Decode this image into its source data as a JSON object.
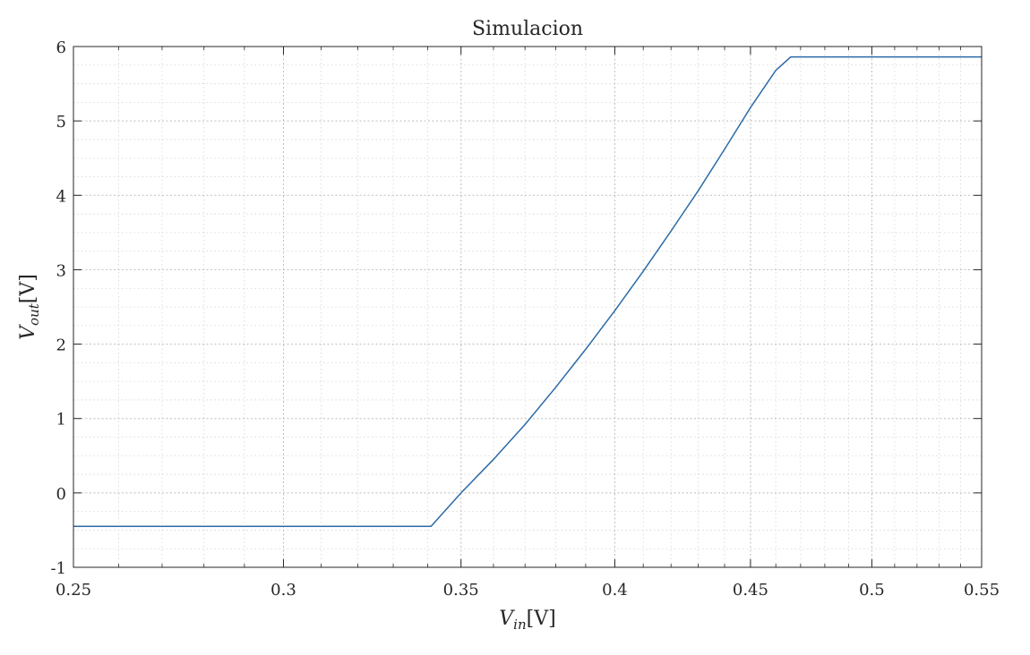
{
  "chart_data": {
    "type": "line",
    "title": "Simulacion",
    "xlabel": {
      "main": "V",
      "sub": "in",
      "suffix": "[V]"
    },
    "ylabel": {
      "main": "V",
      "sub": "out",
      "suffix": "[V]"
    },
    "xlim": [
      0.25,
      0.55
    ],
    "ylim": [
      -1,
      6
    ],
    "x_scale": "log",
    "xticks": [
      0.25,
      0.3,
      0.35,
      0.4,
      0.45,
      0.5,
      0.55
    ],
    "xtick_labels": [
      "0.25",
      "0.3",
      "0.35",
      "0.4",
      "0.45",
      "0.5",
      "0.55"
    ],
    "yticks": [
      -1,
      0,
      1,
      2,
      3,
      4,
      5,
      6
    ],
    "ytick_labels": [
      "-1",
      "0",
      "1",
      "2",
      "3",
      "4",
      "5",
      "6"
    ],
    "grid": true,
    "minor_grid": true,
    "line_color": "#2b6aa8",
    "series": [
      {
        "x": [
          0.25,
          0.3,
          0.341,
          0.35,
          0.36,
          0.37,
          0.38,
          0.39,
          0.4,
          0.41,
          0.42,
          0.43,
          0.44,
          0.45,
          0.46,
          0.466,
          0.5,
          0.55
        ],
        "y": [
          -0.45,
          -0.45,
          -0.45,
          0.0,
          0.45,
          0.92,
          1.42,
          1.93,
          2.45,
          2.98,
          3.52,
          4.06,
          4.62,
          5.18,
          5.68,
          5.86,
          5.86,
          5.86
        ]
      }
    ]
  }
}
